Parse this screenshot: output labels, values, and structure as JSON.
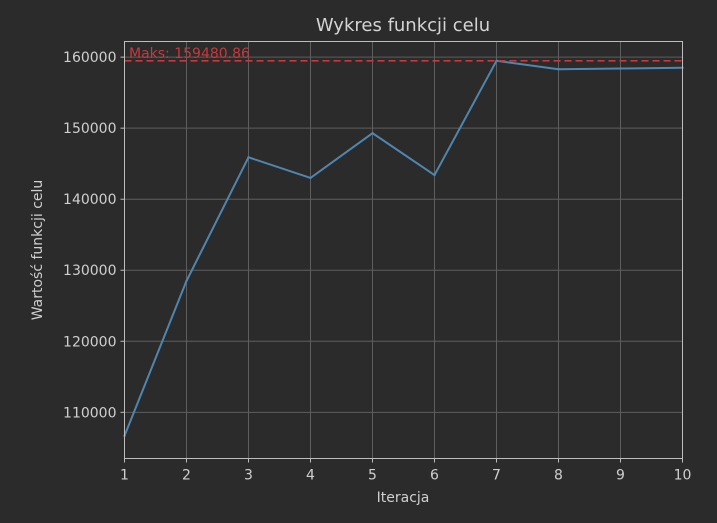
{
  "chart_data": {
    "type": "line",
    "title": "Wykres funkcji celu",
    "xlabel": "Iteracja",
    "ylabel": "Wartość funkcji celu",
    "x": [
      1,
      2,
      3,
      4,
      5,
      6,
      7,
      8,
      9,
      10
    ],
    "xlim": [
      1,
      10
    ],
    "ylim": [
      103500,
      162200
    ],
    "xticks": [
      "1",
      "2",
      "3",
      "4",
      "5",
      "6",
      "7",
      "8",
      "9",
      "10"
    ],
    "yticks": [
      110000,
      120000,
      130000,
      140000,
      150000,
      160000
    ],
    "ytick_labels": [
      "110000",
      "120000",
      "130000",
      "140000",
      "150000",
      "160000"
    ],
    "grid": true,
    "series": [
      {
        "values": [
          106700,
          128500,
          145900,
          143000,
          149300,
          143400,
          159480.86,
          158300,
          158400,
          158500
        ],
        "color": "#4f86b0"
      }
    ],
    "max_line": {
      "value": 159480.86,
      "label": "Maks: 159480.86",
      "color": "#c8383c"
    },
    "colors": {
      "background": "#2b2b2b",
      "grid": "#5e5e5e",
      "frame": "#bdbdbd",
      "text": "#cfcfcf"
    }
  }
}
